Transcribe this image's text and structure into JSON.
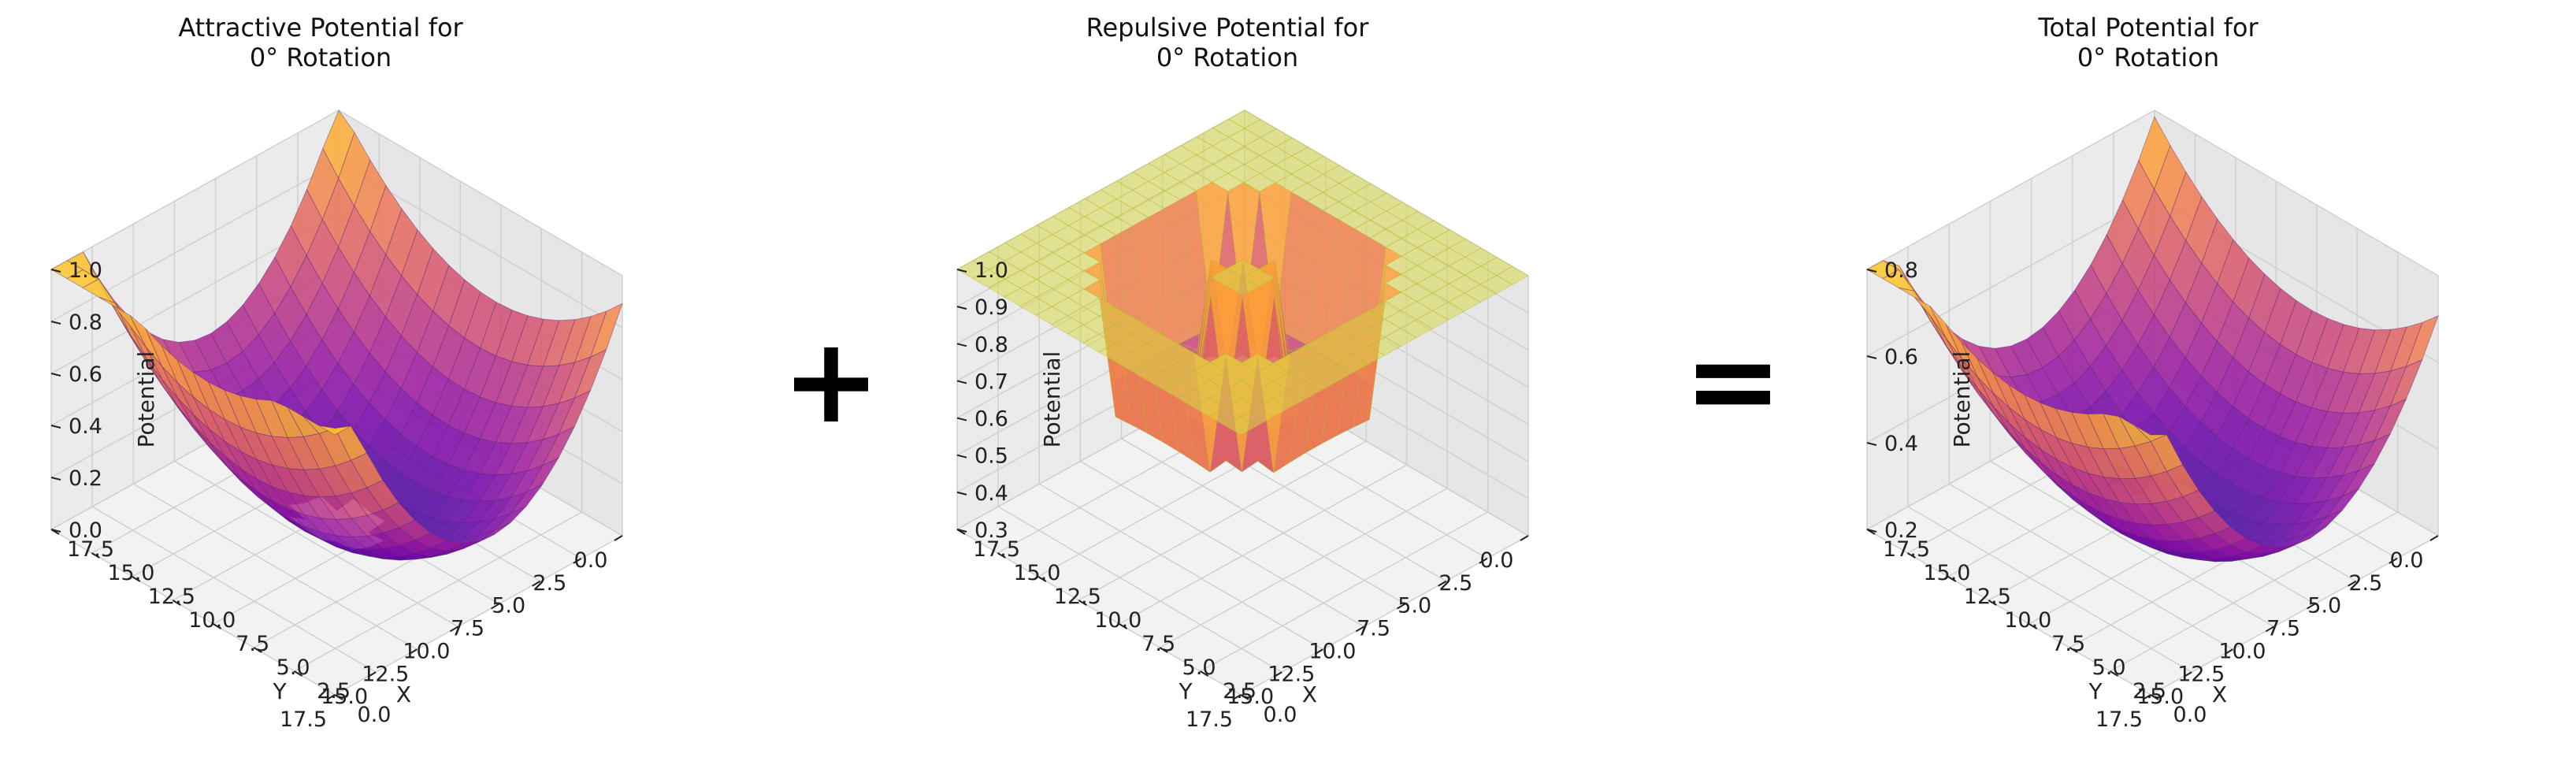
{
  "colors": {
    "attractive_low": "#2c1a86",
    "attractive_high": "#d9b33b",
    "repulsive_plane": "#d8d84a",
    "repulsive_low": "#7d1fa8",
    "repulsive_high": "#e2798a"
  },
  "operators": {
    "plus": "+",
    "equals": "="
  },
  "chart_data": [
    {
      "type": "surface3d",
      "title": "Attractive Potential for\n0° Rotation",
      "xlabel": "X",
      "ylabel": "Y",
      "zlabel": "Potential",
      "xlim": [
        0,
        17.5
      ],
      "ylim": [
        0,
        17.5
      ],
      "zlim": [
        0.0,
        1.0
      ],
      "x_ticks": [
        "0.0",
        "2.5",
        "5.0",
        "7.5",
        "10.0",
        "12.5",
        "15.0",
        "17.5"
      ],
      "y_ticks": [
        "0.0",
        "2.5",
        "5.0",
        "7.5",
        "10.0",
        "12.5",
        "15.0",
        "17.5"
      ],
      "z_ticks": [
        "0.0",
        "0.2",
        "0.4",
        "0.6",
        "0.8",
        "1.0"
      ],
      "colormap": "plasma",
      "surface": "quadratic bowl",
      "hole": "region around the obstacle is not drawn",
      "grid": true
    },
    {
      "type": "surface3d",
      "title": "Repulsive Potential for\n0° Rotation",
      "xlabel": "X",
      "ylabel": "Y",
      "zlabel": "Potential",
      "xlim": [
        0,
        17.5
      ],
      "ylim": [
        0,
        17.5
      ],
      "zlim": [
        0.25,
        1.0
      ],
      "x_ticks": [
        "0.0",
        "2.5",
        "5.0",
        "7.5",
        "10.0",
        "12.5",
        "15.0",
        "17.5"
      ],
      "y_ticks": [
        "0.0",
        "2.5",
        "5.0",
        "7.5",
        "10.0",
        "12.5",
        "15.0",
        "17.5"
      ],
      "z_ticks": [
        "0.3",
        "0.4",
        "0.5",
        "0.6",
        "0.7",
        "0.8",
        "0.9",
        "1.0"
      ],
      "colormap": "plasma",
      "surface": "flat plateau at 1.0 with a central spike and lower rim",
      "grid": true
    },
    {
      "type": "surface3d",
      "title": "Total Potential for\n0° Rotation",
      "xlabel": "X",
      "ylabel": "Y",
      "zlabel": "Potential",
      "xlim": [
        0,
        17.5
      ],
      "ylim": [
        0,
        17.5
      ],
      "zlim": [
        0.0,
        1.0
      ],
      "x_ticks": [
        "0.0",
        "2.5",
        "5.0",
        "7.5",
        "10.0",
        "12.5",
        "15.0",
        "17.5"
      ],
      "y_ticks": [
        "0.0",
        "2.5",
        "5.0",
        "7.5",
        "10.0",
        "12.5",
        "15.0",
        "17.5"
      ],
      "z_ticks": [
        "0.2",
        "0.4",
        "0.6",
        "0.8"
      ],
      "colormap": "plasma",
      "surface": "bowl with obstacle bump",
      "grid": true
    }
  ]
}
